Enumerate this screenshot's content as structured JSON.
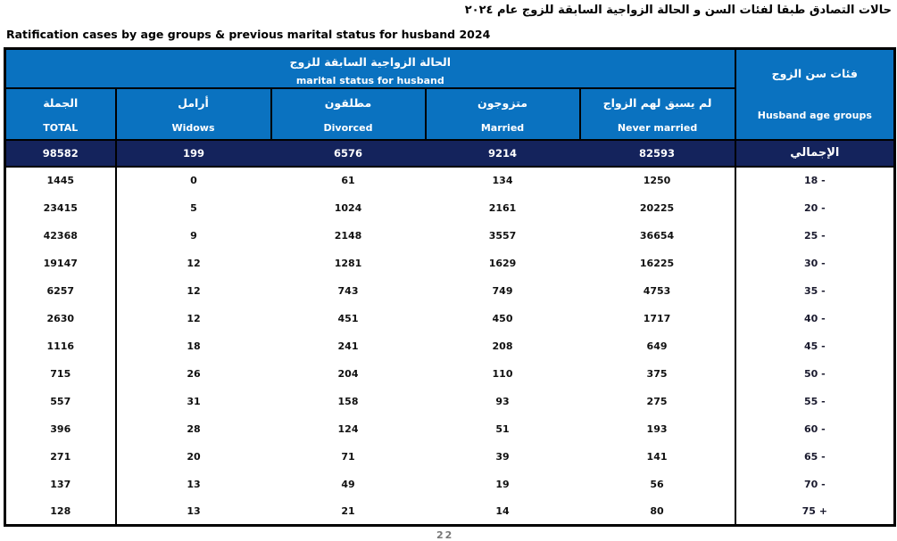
{
  "titles": {
    "arabic": "حالات التصادق طبقا لفئات السن و الحالة الزواجية السابقة للزوج  عام ٢٠٢٤",
    "english": "Ratification cases by age groups & previous marital status for husband 2024"
  },
  "colors": {
    "header_blue": "#0a72c0",
    "total_row_navy": "#14235c",
    "border_black": "#000000",
    "header_text": "#ffffff",
    "body_text": "#111111"
  },
  "chart_data": {
    "type": "table",
    "title": "Ratification cases by age groups & previous marital status for husband 2024",
    "merged_header": {
      "ar": "الحالة الزواجية السابقة للزوج",
      "en": "marital status for husband"
    },
    "age_header": {
      "ar": "فئات سن الزوج",
      "en": "Husband age groups"
    },
    "columns": [
      {
        "ar": "الجملة",
        "en": "TOTAL"
      },
      {
        "ar": "أرامل",
        "en": "Widows"
      },
      {
        "ar": "مطلقون",
        "en": "Divorced"
      },
      {
        "ar": "متزوجون",
        "en": "Married"
      },
      {
        "ar": "لم يسبق لهم الزواج",
        "en": "Never married"
      }
    ],
    "total_row": {
      "label_ar": "الإجمالي",
      "values": [
        "98582",
        "199",
        "6576",
        "9214",
        "82593"
      ]
    },
    "rows": [
      {
        "age": "18 -",
        "values": [
          "1445",
          "0",
          "61",
          "134",
          "1250"
        ]
      },
      {
        "age": "20 -",
        "values": [
          "23415",
          "5",
          "1024",
          "2161",
          "20225"
        ]
      },
      {
        "age": "25 -",
        "values": [
          "42368",
          "9",
          "2148",
          "3557",
          "36654"
        ]
      },
      {
        "age": "30 -",
        "values": [
          "19147",
          "12",
          "1281",
          "1629",
          "16225"
        ]
      },
      {
        "age": "35 -",
        "values": [
          "6257",
          "12",
          "743",
          "749",
          "4753"
        ]
      },
      {
        "age": "40 -",
        "values": [
          "2630",
          "12",
          "451",
          "450",
          "1717"
        ]
      },
      {
        "age": "45 -",
        "values": [
          "1116",
          "18",
          "241",
          "208",
          "649"
        ]
      },
      {
        "age": "50 -",
        "values": [
          "715",
          "26",
          "204",
          "110",
          "375"
        ]
      },
      {
        "age": "55 -",
        "values": [
          "557",
          "31",
          "158",
          "93",
          "275"
        ]
      },
      {
        "age": "60 -",
        "values": [
          "396",
          "28",
          "124",
          "51",
          "193"
        ]
      },
      {
        "age": "65 -",
        "values": [
          "271",
          "20",
          "71",
          "39",
          "141"
        ]
      },
      {
        "age": "70 -",
        "values": [
          "137",
          "13",
          "49",
          "19",
          "56"
        ]
      },
      {
        "age": "75 +",
        "values": [
          "128",
          "13",
          "21",
          "14",
          "80"
        ]
      }
    ]
  },
  "footer": {
    "page_number": "22"
  }
}
